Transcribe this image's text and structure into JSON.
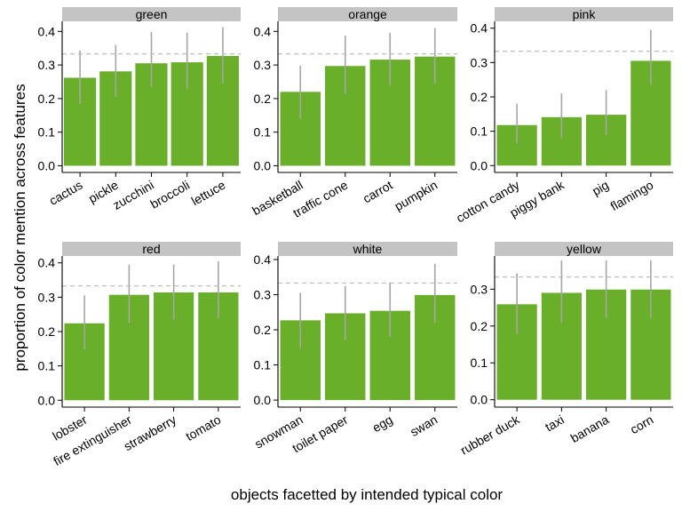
{
  "chart_data": {
    "type": "bar",
    "xlabel": "objects facetted by intended typical color",
    "ylabel": "proportion of color mention across features",
    "yticks": [
      0.0,
      0.1,
      0.2,
      0.3,
      0.4
    ],
    "ytick_labels": [
      "0.0",
      "0.1",
      "0.2",
      "0.3",
      "0.4"
    ],
    "reference_line": 0.333,
    "colors": {
      "bar": "#6AAF2A",
      "error": "#A6A6A6",
      "ref": "#BEBEBE",
      "strip": "#C4C4C4"
    },
    "panels": [
      {
        "title": "green",
        "ylim": [
          -0.02,
          0.43
        ],
        "categories": [
          "cactus",
          "pickle",
          "zucchini",
          "broccoli",
          "lettuce"
        ],
        "values": [
          0.262,
          0.281,
          0.305,
          0.308,
          0.327
        ],
        "lower": [
          0.185,
          0.205,
          0.235,
          0.23,
          0.245
        ],
        "upper": [
          0.343,
          0.36,
          0.398,
          0.396,
          0.412
        ]
      },
      {
        "title": "orange",
        "ylim": [
          -0.02,
          0.43
        ],
        "categories": [
          "basketball",
          "traffic cone",
          "carrot",
          "pumpkin"
        ],
        "values": [
          0.22,
          0.297,
          0.316,
          0.325
        ],
        "lower": [
          0.14,
          0.215,
          0.24,
          0.245
        ],
        "upper": [
          0.298,
          0.388,
          0.396,
          0.41
        ]
      },
      {
        "title": "pink",
        "ylim": [
          -0.02,
          0.42
        ],
        "categories": [
          "cotton candy",
          "piggy bank",
          "pig",
          "flamingo"
        ],
        "values": [
          0.118,
          0.141,
          0.148,
          0.305
        ],
        "lower": [
          0.065,
          0.08,
          0.088,
          0.235
        ],
        "upper": [
          0.18,
          0.21,
          0.22,
          0.395
        ]
      },
      {
        "title": "red",
        "ylim": [
          -0.02,
          0.42
        ],
        "categories": [
          "lobster",
          "fire extinguisher",
          "strawberry",
          "tomato"
        ],
        "values": [
          0.224,
          0.307,
          0.314,
          0.314
        ],
        "lower": [
          0.148,
          0.225,
          0.235,
          0.238
        ],
        "upper": [
          0.305,
          0.395,
          0.395,
          0.405
        ]
      },
      {
        "title": "white",
        "ylim": [
          -0.02,
          0.41
        ],
        "categories": [
          "snowman",
          "toilet paper",
          "egg",
          "swan"
        ],
        "values": [
          0.227,
          0.247,
          0.254,
          0.299
        ],
        "lower": [
          0.148,
          0.17,
          0.18,
          0.22
        ],
        "upper": [
          0.305,
          0.325,
          0.335,
          0.388
        ]
      },
      {
        "title": "yellow",
        "ylim": [
          -0.02,
          0.39
        ],
        "categories": [
          "rubber duck",
          "taxi",
          "banana",
          "corn"
        ],
        "values": [
          0.259,
          0.29,
          0.299,
          0.299
        ],
        "lower": [
          0.178,
          0.21,
          0.222,
          0.222
        ],
        "upper": [
          0.343,
          0.378,
          0.378,
          0.378
        ]
      }
    ]
  }
}
